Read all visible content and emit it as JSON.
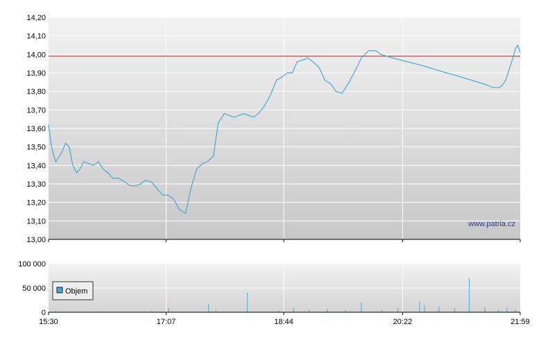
{
  "chart_data": [
    {
      "type": "line",
      "ylim": [
        13.0,
        14.2
      ],
      "yticks": [
        "14,20",
        "14,10",
        "14,00",
        "13,90",
        "13,80",
        "13,70",
        "13,60",
        "13,50",
        "13,40",
        "13,30",
        "13,20",
        "13,10",
        "13,00"
      ],
      "ytick_values": [
        14.2,
        14.1,
        14.0,
        13.9,
        13.8,
        13.7,
        13.6,
        13.5,
        13.4,
        13.3,
        13.2,
        13.1,
        13.0
      ],
      "xticks": [
        "15:30",
        "17:07",
        "18:44",
        "20:22",
        "21:59"
      ],
      "reference_line": {
        "value": 13.99,
        "color": "#b22222"
      },
      "grid": true,
      "watermark": "www.patria.cz",
      "series": [
        {
          "color": "#4aa8d0",
          "x": [
            "15:30",
            "15:32",
            "15:34",
            "15:36",
            "15:38",
            "15:41",
            "15:44",
            "15:47",
            "15:50",
            "15:53",
            "15:56",
            "15:59",
            "16:03",
            "16:07",
            "16:11",
            "16:15",
            "16:19",
            "16:23",
            "16:28",
            "16:33",
            "16:37",
            "16:42",
            "16:46",
            "16:50",
            "16:55",
            "17:00",
            "17:04",
            "17:08",
            "17:13",
            "17:18",
            "17:23",
            "17:28",
            "17:32",
            "17:37",
            "17:41",
            "17:46",
            "17:50",
            "17:55",
            "17:59",
            "18:03",
            "18:07",
            "18:11",
            "18:15",
            "18:19",
            "18:23",
            "18:28",
            "18:33",
            "18:38",
            "18:43",
            "18:47",
            "18:51",
            "18:55",
            "19:00",
            "19:04",
            "19:08",
            "19:13",
            "19:18",
            "19:23",
            "19:27",
            "19:32",
            "19:37",
            "19:42",
            "19:48",
            "19:54",
            "20:00",
            "20:04",
            "20:09",
            "20:14",
            "20:20",
            "20:26",
            "20:32",
            "20:38",
            "20:43",
            "20:48",
            "20:53",
            "20:58",
            "21:04",
            "21:09",
            "21:14",
            "21:19",
            "21:24",
            "21:29",
            "21:33",
            "21:37",
            "21:41",
            "21:44",
            "21:47",
            "21:49",
            "21:51",
            "21:53",
            "21:55",
            "21:57",
            "21:59"
          ],
          "y": [
            13.62,
            13.52,
            13.46,
            13.42,
            13.44,
            13.47,
            13.52,
            13.5,
            13.4,
            13.36,
            13.38,
            13.42,
            13.41,
            13.4,
            13.42,
            13.38,
            13.36,
            13.33,
            13.33,
            13.31,
            13.29,
            13.29,
            13.3,
            13.32,
            13.31,
            13.27,
            13.24,
            13.24,
            13.22,
            13.16,
            13.14,
            13.29,
            13.38,
            13.41,
            13.42,
            13.45,
            13.63,
            13.68,
            13.67,
            13.66,
            13.67,
            13.68,
            13.67,
            13.66,
            13.68,
            13.72,
            13.78,
            13.86,
            13.88,
            13.9,
            13.9,
            13.96,
            13.97,
            13.98,
            13.96,
            13.93,
            13.86,
            13.84,
            13.8,
            13.79,
            13.84,
            13.9,
            13.98,
            14.02,
            14.02,
            14.0,
            13.99,
            13.98,
            13.97,
            13.96,
            13.95,
            13.94,
            13.93,
            13.92,
            13.91,
            13.9,
            13.89,
            13.88,
            13.87,
            13.86,
            13.85,
            13.84,
            13.83,
            13.82,
            13.82,
            13.83,
            13.86,
            13.9,
            13.94,
            13.98,
            14.03,
            14.05,
            14.01
          ]
        }
      ]
    },
    {
      "type": "bar",
      "ylim": [
        0,
        100000
      ],
      "yticks": [
        "100 000",
        "50 000",
        "0"
      ],
      "ytick_values": [
        100000,
        50000,
        0
      ],
      "xticks": [
        "15:30",
        "17:07",
        "18:44",
        "20:22",
        "21:59"
      ],
      "grid": true,
      "legend": {
        "position": "left",
        "entries": [
          "Objem"
        ]
      },
      "series": [
        {
          "name": "Objem",
          "color": "#4aa8d0",
          "x": [
            "15:36",
            "16:12",
            "16:55",
            "17:09",
            "17:42",
            "17:48",
            "18:14",
            "18:40",
            "18:52",
            "19:05",
            "19:20",
            "19:35",
            "19:48",
            "20:05",
            "20:18",
            "20:36",
            "20:40",
            "20:52",
            "21:05",
            "21:17",
            "21:30",
            "21:41",
            "21:48",
            "21:55"
          ],
          "values": [
            3000,
            2000,
            2500,
            8000,
            17000,
            4000,
            40000,
            3000,
            9000,
            5000,
            7000,
            4000,
            20000,
            4000,
            9000,
            22000,
            14000,
            12000,
            8000,
            70000,
            10000,
            4000,
            9000,
            6000
          ]
        }
      ]
    }
  ]
}
